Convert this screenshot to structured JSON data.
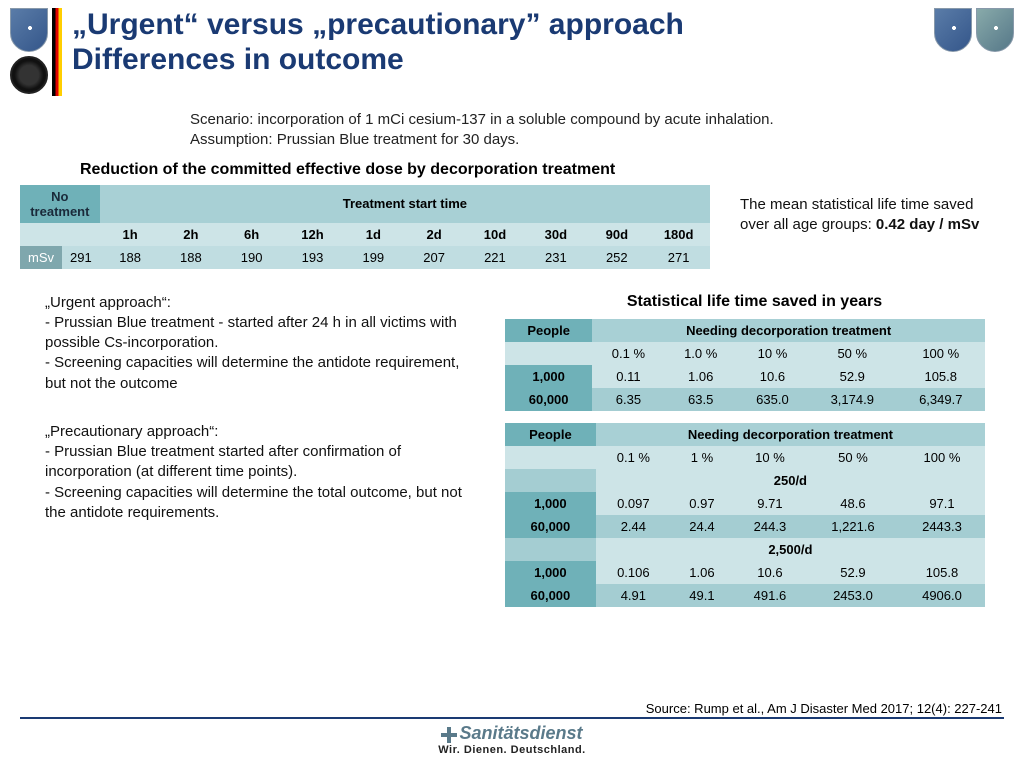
{
  "title_l1": "„Urgent“ versus „precautionary” approach",
  "title_l2": "Differences in outcome",
  "scenario_l1": "Scenario: incorporation of 1 mCi cesium-137 in a soluble compound by acute inhalation.",
  "scenario_l2": "Assumption: Prussian Blue treatment for 30 days.",
  "subhead": "Reduction of the committed effective dose by decorporation treatment",
  "t1": {
    "no_treat": "No treatment",
    "span": "Treatment start time",
    "cols": [
      "1h",
      "2h",
      "6h",
      "12h",
      "1d",
      "2d",
      "10d",
      "30d",
      "90d",
      "180d"
    ],
    "unit": "mSv",
    "base": "291",
    "vals": [
      "188",
      "188",
      "190",
      "193",
      "199",
      "207",
      "221",
      "231",
      "252",
      "271"
    ]
  },
  "sidenote_a": "The mean statistical life time saved over all age groups: ",
  "sidenote_b": "0.42 day / mSv",
  "urgent_h": "„Urgent approach“:",
  "urgent_1": "- Prussian Blue treatment - started after 24 h in all victims with possible Cs-incorporation.",
  "urgent_2": "- Screening capacities will determine the antidote requirement, but not the outcome",
  "prec_h": "„Precautionary  approach“:",
  "prec_1": "-   Prussian Blue treatment started after confirmation of incorporation (at different time points).",
  "prec_2": "- Screening capacities will determine the total outcome, but not the antidote requirements.",
  "rt_head": "Statistical life time saved in years",
  "t2": {
    "h1": "People",
    "h2": "Needing decorporation treatment",
    "pct": [
      "0.1 %",
      "1.0 %",
      "10 %",
      "50 %",
      "100 %"
    ],
    "r1l": "1,000",
    "r1": [
      "0.11",
      "1.06",
      "10.6",
      "52.9",
      "105.8"
    ],
    "r2l": "60,000",
    "r2": [
      "6.35",
      "63.5",
      "635.0",
      "3,174.9",
      "6,349.7"
    ]
  },
  "t3": {
    "h1": "People",
    "h2": "Needing decorporation treatment",
    "pct": [
      "0.1 %",
      "1 %",
      "10 %",
      "50 %",
      "100 %"
    ],
    "band1": "250/d",
    "b1r1l": "1,000",
    "b1r1": [
      "0.097",
      "0.97",
      "9.71",
      "48.6",
      "97.1"
    ],
    "b1r2l": "60,000",
    "b1r2": [
      "2.44",
      "24.4",
      "244.3",
      "1,221.6",
      "2443.3"
    ],
    "band2": "2,500/d",
    "b2r1l": "1,000",
    "b2r1": [
      "0.106",
      "1.06",
      "10.6",
      "52.9",
      "105.8"
    ],
    "b2r2l": "60,000",
    "b2r2": [
      "4.91",
      "49.1",
      "491.6",
      "2453.0",
      "4906.0"
    ]
  },
  "source": "Source: Rump et al., Am J Disaster Med 2017; 12(4): 227-241",
  "footer_svc": "Sanitätsdienst",
  "footer_motto": "Wir. Dienen. Deutschland."
}
